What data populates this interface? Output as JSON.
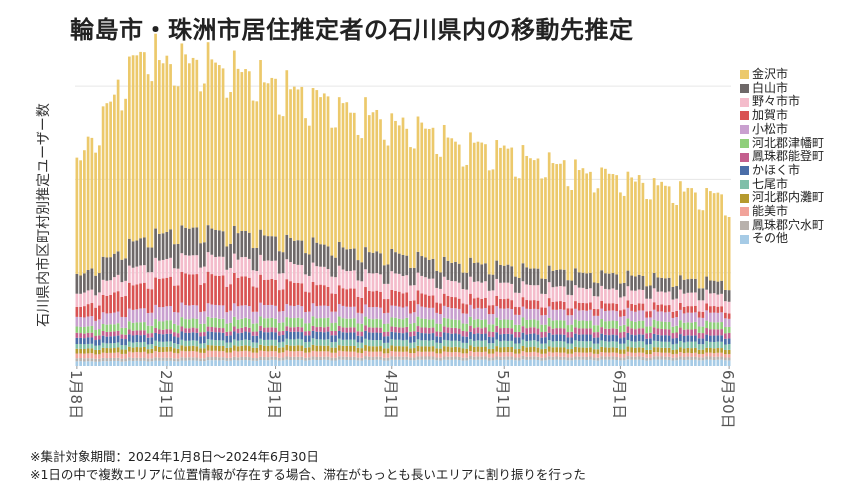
{
  "chart_data": {
    "type": "bar",
    "stacked": true,
    "title": "輪島市・珠洲市居住推定者の石川県内の移動先推定",
    "xlabel": "",
    "ylabel": "石川県内市区町村別推定ユーザー数",
    "x_range": [
      "2024-01-08",
      "2024-06-30"
    ],
    "ylim": [
      0,
      100
    ],
    "yticks": [
      90,
      60,
      30
    ],
    "y_tick_labels_shown": false,
    "x_ticks": [
      {
        "label": "1月8日",
        "day": 0
      },
      {
        "label": "2月1日",
        "day": 24
      },
      {
        "label": "3月1日",
        "day": 53
      },
      {
        "label": "4月1日",
        "day": 84
      },
      {
        "label": "5月1日",
        "day": 114
      },
      {
        "label": "6月1日",
        "day": 145
      },
      {
        "label": "6月30日",
        "day": 174
      }
    ],
    "legend_position": "right",
    "values_note": "relative units estimated from gridlines (y-axis values not labeled)",
    "series": [
      {
        "name": "金沢市",
        "color": "#ecc96b",
        "daily_profile": [
          [
            0,
            36
          ],
          [
            8,
            50
          ],
          [
            17,
            62
          ],
          [
            25,
            55
          ],
          [
            33,
            55
          ],
          [
            45,
            52
          ],
          [
            60,
            48
          ],
          [
            75,
            45
          ],
          [
            90,
            42
          ],
          [
            110,
            38
          ],
          [
            130,
            34
          ],
          [
            150,
            31
          ],
          [
            175,
            27
          ]
        ]
      },
      {
        "name": "白山市",
        "color": "#6e6868",
        "daily_profile": [
          [
            0,
            6
          ],
          [
            20,
            9
          ],
          [
            50,
            8
          ],
          [
            100,
            6
          ],
          [
            175,
            4
          ]
        ]
      },
      {
        "name": "野々市市",
        "color": "#f4bccb",
        "daily_profile": [
          [
            0,
            4
          ],
          [
            20,
            6
          ],
          [
            60,
            6
          ],
          [
            120,
            5
          ],
          [
            175,
            4
          ]
        ]
      },
      {
        "name": "加賀市",
        "color": "#d95353",
        "daily_profile": [
          [
            0,
            3
          ],
          [
            15,
            8
          ],
          [
            30,
            10
          ],
          [
            45,
            9
          ],
          [
            70,
            6
          ],
          [
            100,
            3.5
          ],
          [
            130,
            2.5
          ],
          [
            175,
            2
          ]
        ]
      },
      {
        "name": "小松市",
        "color": "#c9a0cf",
        "daily_profile": [
          [
            0,
            3
          ],
          [
            20,
            4.5
          ],
          [
            60,
            4
          ],
          [
            120,
            3.5
          ],
          [
            175,
            3
          ]
        ]
      },
      {
        "name": "河北郡津幡町",
        "color": "#8fcf7a",
        "daily_profile": [
          [
            0,
            2
          ],
          [
            30,
            3
          ],
          [
            90,
            2.8
          ],
          [
            175,
            2.2
          ]
        ]
      },
      {
        "name": "鳳珠郡能登町",
        "color": "#c45f8e",
        "daily_profile": [
          [
            0,
            1.5
          ],
          [
            60,
            1.5
          ],
          [
            120,
            2
          ],
          [
            175,
            2
          ]
        ]
      },
      {
        "name": "かほく市",
        "color": "#4a6da8",
        "daily_profile": [
          [
            0,
            2
          ],
          [
            30,
            2.5
          ],
          [
            90,
            2.3
          ],
          [
            175,
            2
          ]
        ]
      },
      {
        "name": "七尾市",
        "color": "#7fbfa9",
        "daily_profile": [
          [
            0,
            1.5
          ],
          [
            60,
            2
          ],
          [
            175,
            2
          ]
        ]
      },
      {
        "name": "河北郡内灘町",
        "color": "#b59a2e",
        "daily_profile": [
          [
            0,
            1.5
          ],
          [
            60,
            1.8
          ],
          [
            175,
            1.5
          ]
        ]
      },
      {
        "name": "能美市",
        "color": "#f1a39a",
        "daily_profile": [
          [
            0,
            1.5
          ],
          [
            30,
            2
          ],
          [
            100,
            1.5
          ],
          [
            175,
            1.2
          ]
        ]
      },
      {
        "name": "鳳珠郡穴水町",
        "color": "#b8b1ac",
        "daily_profile": [
          [
            0,
            1
          ],
          [
            175,
            1
          ]
        ]
      },
      {
        "name": "その他",
        "color": "#a6cbe6",
        "daily_profile": [
          [
            0,
            1.5
          ],
          [
            60,
            2
          ],
          [
            175,
            2
          ]
        ]
      }
    ]
  },
  "footnotes": {
    "line1": "※集計対象期間：2024年1月8日～2024年6月30日",
    "line2": "※1日の中で複数エリアに位置情報が存在する場合、滞在がもっとも長いエリアに割り振りを行った"
  }
}
